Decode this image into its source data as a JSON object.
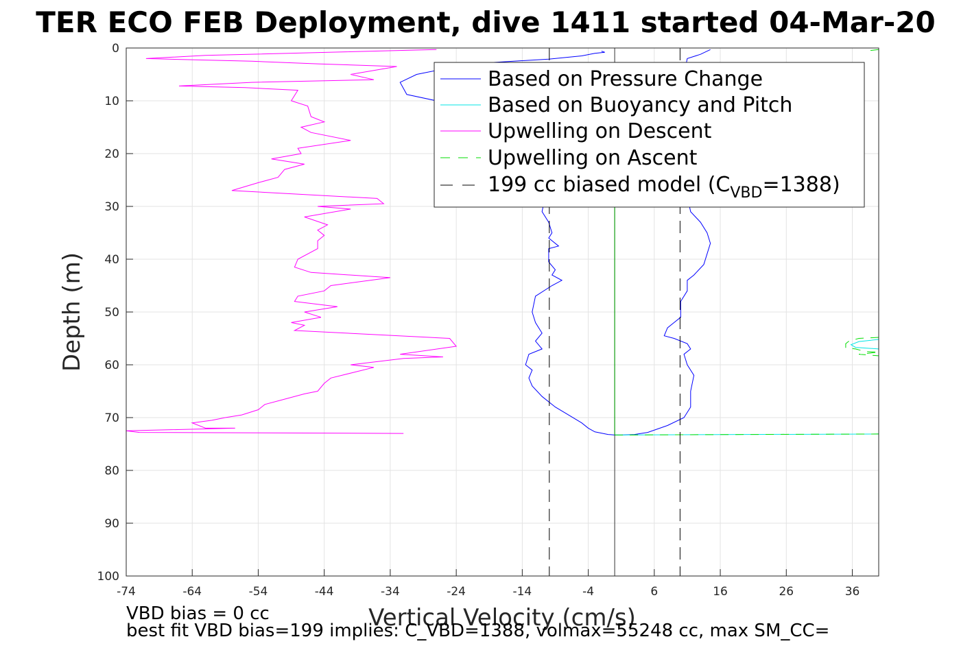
{
  "chart_data": {
    "type": "line",
    "title": "TER ECO FEB Deployment, dive 1411 started 04-Mar-20",
    "xlabel": "Vertical Velocity (cm/s)",
    "ylabel": "Depth (m)",
    "xlim": [
      -74,
      40
    ],
    "ylim": [
      0,
      100
    ],
    "y_reversed": true,
    "grid": true,
    "xticks": [
      "-74",
      "-64",
      "-54",
      "-44",
      "-34",
      "-24",
      "-14",
      "-4",
      "6",
      "16",
      "26",
      "36"
    ],
    "yticks": [
      "0",
      "10",
      "20",
      "30",
      "40",
      "50",
      "60",
      "70",
      "80",
      "90",
      "100"
    ],
    "legend": {
      "placement": "top-right",
      "entries": [
        {
          "label": "Based on Pressure Change",
          "color": "#0000ff",
          "dash": "solid"
        },
        {
          "label": "Based on Buoyancy and Pitch",
          "color": "#00e5e5",
          "dash": "solid"
        },
        {
          "label": "Upwelling on Descent",
          "color": "#ff00ff",
          "dash": "solid"
        },
        {
          "label": "Upwelling on Ascent",
          "color": "#00dd00",
          "dash": "dashed"
        },
        {
          "label_main": "199 cc biased model (C",
          "label_sub": "VBD",
          "label_end": "=1388)",
          "color": "#000000",
          "dash": "dashed"
        }
      ]
    },
    "series": [
      {
        "name": "Based on Pressure Change",
        "color": "#0000ff",
        "points": [
          [
            -2,
            0.6
          ],
          [
            -1.5,
            0.8
          ],
          [
            -3,
            1.0
          ],
          [
            -5,
            1.5
          ],
          [
            -10,
            2.1
          ],
          [
            -22,
            3.0
          ],
          [
            -30,
            5.0
          ],
          [
            -32.5,
            6.5
          ],
          [
            -31.5,
            8.8
          ],
          [
            -27,
            10.0
          ],
          [
            -22.5,
            11.0
          ],
          [
            -18,
            13.0
          ],
          [
            -15,
            17.0
          ],
          [
            -12,
            22.0
          ],
          [
            -10.5,
            28.0
          ],
          [
            -11,
            31.0
          ],
          [
            -10,
            33.0
          ],
          [
            -9.5,
            35.0
          ],
          [
            -10,
            36.0
          ],
          [
            -8.5,
            37.5
          ],
          [
            -10,
            38.0
          ],
          [
            -10,
            40.5
          ],
          [
            -9,
            42.0
          ],
          [
            -9.5,
            43.0
          ],
          [
            -8,
            44.0
          ],
          [
            -9.5,
            45.0
          ],
          [
            -12,
            47.0
          ],
          [
            -12.5,
            50.0
          ],
          [
            -12,
            52.0
          ],
          [
            -11,
            54.0
          ],
          [
            -12,
            55.5
          ],
          [
            -11,
            57.0
          ],
          [
            -13,
            58.0
          ],
          [
            -13.5,
            60.0
          ],
          [
            -12.5,
            61.0
          ],
          [
            -13,
            62.5
          ],
          [
            -12.5,
            64.0
          ],
          [
            -11,
            66.0
          ],
          [
            -9,
            68.0
          ],
          [
            -7,
            69.5
          ],
          [
            -5,
            71.0
          ],
          [
            -4,
            72.0
          ],
          [
            -3,
            72.7
          ],
          [
            -1,
            73.2
          ],
          [
            0,
            73.3
          ],
          [
            1,
            73.3
          ]
        ]
      },
      {
        "name": "Upwelling on Ascent",
        "color": "#0000ff",
        "points": [
          [
            1,
            73.3
          ],
          [
            3,
            73.2
          ],
          [
            5,
            72.8
          ],
          [
            8,
            71.5
          ],
          [
            10.5,
            70.0
          ],
          [
            11.5,
            68.0
          ],
          [
            11.5,
            65.0
          ],
          [
            12,
            62.0
          ],
          [
            11,
            60.0
          ],
          [
            10.5,
            58.0
          ],
          [
            11.5,
            57.0
          ],
          [
            11,
            56.0
          ],
          [
            9,
            55.0
          ],
          [
            7.5,
            54.5
          ],
          [
            8,
            53.0
          ],
          [
            9,
            52.0
          ],
          [
            10,
            51.0
          ],
          [
            10,
            48.0
          ],
          [
            11,
            46.0
          ],
          [
            11,
            44.0
          ],
          [
            12,
            43.0
          ],
          [
            13.5,
            41.0
          ],
          [
            14,
            39.0
          ],
          [
            14.5,
            37.0
          ],
          [
            14,
            35.0
          ],
          [
            13,
            33.0
          ],
          [
            11.5,
            31.0
          ],
          [
            11,
            28.0
          ],
          [
            10.5,
            25.0
          ],
          [
            10.5,
            20.0
          ],
          [
            10,
            15.0
          ],
          [
            10,
            10.0
          ],
          [
            10.5,
            5.0
          ],
          [
            11,
            2.0
          ],
          [
            13,
            1.2
          ],
          [
            14.5,
            0.3
          ]
        ]
      },
      {
        "name": "Based on Buoyancy and Pitch",
        "color": "#00e5e5",
        "points": [
          [
            0,
            73.3
          ],
          [
            40,
            73.1
          ]
        ]
      },
      {
        "name": "Upwelling on Descent",
        "color": "#ff00ff",
        "points": [
          [
            -27,
            0.3
          ],
          [
            -62,
            1.4
          ],
          [
            -71,
            2.0
          ],
          [
            -55,
            2.5
          ],
          [
            -45,
            3.0
          ],
          [
            -33,
            3.5
          ],
          [
            -40,
            5.0
          ],
          [
            -36.5,
            6.0
          ],
          [
            -55,
            6.5
          ],
          [
            -66,
            7.2
          ],
          [
            -56,
            7.5
          ],
          [
            -48,
            8.0
          ],
          [
            -49,
            10.0
          ],
          [
            -46.5,
            11.0
          ],
          [
            -46,
            13.0
          ],
          [
            -44,
            14.0
          ],
          [
            -47.5,
            15.0
          ],
          [
            -46,
            16.0
          ],
          [
            -40,
            17.5
          ],
          [
            -48,
            19.0
          ],
          [
            -47.5,
            20.0
          ],
          [
            -52,
            21.0
          ],
          [
            -47,
            22.0
          ],
          [
            -50,
            23.0
          ],
          [
            -51,
            24.5
          ],
          [
            -54,
            25.5
          ],
          [
            -58,
            27.0
          ],
          [
            -36,
            28.5
          ],
          [
            -35,
            29.5
          ],
          [
            -45,
            30.0
          ],
          [
            -40,
            30.5
          ],
          [
            -47,
            32.0
          ],
          [
            -43.5,
            33.5
          ],
          [
            -45,
            34.5
          ],
          [
            -44,
            35.5
          ],
          [
            -45,
            36.5
          ],
          [
            -45,
            38.0
          ],
          [
            -48,
            40.0
          ],
          [
            -48.5,
            41.5
          ],
          [
            -46,
            42.5
          ],
          [
            -34,
            43.5
          ],
          [
            -43,
            45.0
          ],
          [
            -44,
            46.0
          ],
          [
            -48,
            47.0
          ],
          [
            -48.5,
            48.0
          ],
          [
            -42,
            49.0
          ],
          [
            -47,
            50.0
          ],
          [
            -44.5,
            51.0
          ],
          [
            -49,
            52.0
          ],
          [
            -47,
            52.5
          ],
          [
            -48.5,
            53.5
          ],
          [
            -25,
            55.0
          ],
          [
            -24,
            56.5
          ],
          [
            -32.5,
            58.0
          ],
          [
            -26,
            58.5
          ],
          [
            -32,
            58.8
          ],
          [
            -40,
            60.0
          ],
          [
            -36.5,
            60.5
          ],
          [
            -43,
            62.5
          ],
          [
            -44,
            63.5
          ],
          [
            -45,
            65.0
          ],
          [
            -47,
            65.5
          ],
          [
            -50,
            66.5
          ],
          [
            -53,
            67.5
          ],
          [
            -54,
            68.5
          ],
          [
            -56.5,
            69.5
          ],
          [
            -59,
            70.0
          ],
          [
            -61,
            70.5
          ],
          [
            -64,
            71.0
          ],
          [
            -62,
            72.0
          ],
          [
            -57.5,
            72.0
          ],
          [
            -74,
            72.5
          ],
          [
            -72,
            72.8
          ],
          [
            -32,
            73.0
          ]
        ]
      },
      {
        "name": "Upwelling on Ascent",
        "color": "#00dd00",
        "dash": [
          12,
          10
        ],
        "points": [
          [
            0,
            73.3
          ],
          [
            40,
            73.1
          ]
        ]
      },
      {
        "name": "Upwelling on Ascent",
        "color": "#00dd00",
        "dash": [
          12,
          10
        ],
        "points": [
          [
            40,
            0.3
          ],
          [
            38.5,
            0.5
          ]
        ]
      },
      {
        "name": "Upwelling on Ascent",
        "color": "#00dd00",
        "dash": [
          12,
          10
        ],
        "points": [
          [
            40,
            54.8
          ],
          [
            37,
            55.0
          ],
          [
            35.5,
            55.5
          ],
          [
            35,
            56.0
          ],
          [
            35,
            56.8
          ],
          [
            36.5,
            57.0
          ],
          [
            38,
            57.5
          ],
          [
            40,
            57.6
          ],
          [
            37,
            58.0
          ],
          [
            40,
            58.3
          ]
        ]
      },
      {
        "name": "Based on Buoyancy and Pitch",
        "color": "#00e5e5",
        "points": [
          [
            40,
            55.2
          ],
          [
            37,
            55.6
          ],
          [
            35.8,
            56.2
          ],
          [
            36.5,
            56.7
          ],
          [
            40,
            57.0
          ]
        ]
      },
      {
        "name": "199 cc biased model (C_VBD=1388)",
        "color": "#000000",
        "dash": [
          18,
          10
        ],
        "points": [
          [
            -9.9,
            0
          ],
          [
            -9.9,
            100
          ]
        ]
      },
      {
        "name": "199 cc biased model (C_VBD=1388)",
        "color": "#000000",
        "dash": [
          18,
          10
        ],
        "points": [
          [
            9.9,
            0
          ],
          [
            9.9,
            100
          ]
        ]
      },
      {
        "name": "Based on Buoyancy and Pitch",
        "color": "#333333",
        "points": [
          [
            0,
            0
          ],
          [
            0,
            100
          ]
        ]
      },
      {
        "name": "Upwelling on Ascent",
        "color": "#00aa00",
        "points": [
          [
            0,
            30
          ],
          [
            0,
            73.3
          ]
        ]
      }
    ],
    "annotations": [
      "VBD bias = 0 cc",
      "best fit VBD bias=199 implies: C_VBD=1388, volmax=55248 cc, max SM_CC="
    ]
  }
}
